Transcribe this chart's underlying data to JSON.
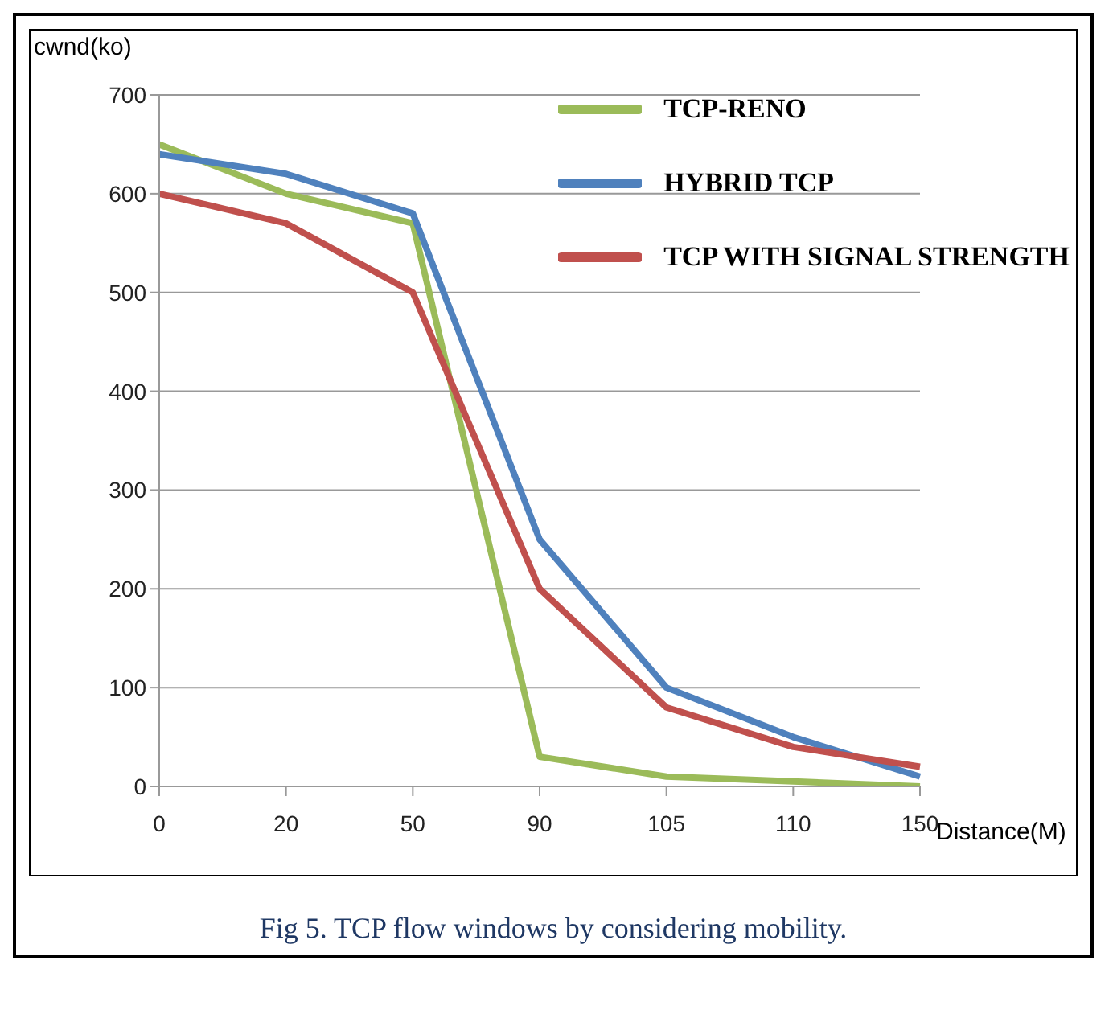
{
  "chart_data": {
    "type": "line",
    "xlabel": "Distance(M)",
    "ylabel": "cwnd(ko)",
    "categories": [
      "0",
      "20",
      "50",
      "90",
      "105",
      "110",
      "150"
    ],
    "series": [
      {
        "name": "TCP-RENO",
        "color": "#9bbb59",
        "values": [
          650,
          600,
          570,
          30,
          10,
          5,
          0
        ]
      },
      {
        "name": "HYBRID TCP",
        "color": "#4f81bd",
        "values": [
          640,
          620,
          580,
          250,
          100,
          50,
          10
        ]
      },
      {
        "name": "TCP WITH SIGNAL STRENGTH",
        "color": "#c0504d",
        "values": [
          600,
          570,
          500,
          200,
          80,
          40,
          20
        ]
      }
    ],
    "ylim": [
      0,
      700
    ],
    "yticks": [
      0,
      100,
      200,
      300,
      400,
      500,
      600,
      700
    ],
    "grid": "y",
    "legend": "top right",
    "marker": "none",
    "line_style": "solid",
    "annotations": [
      "Fig 5. TCP flow windows by considering mobility."
    ]
  }
}
